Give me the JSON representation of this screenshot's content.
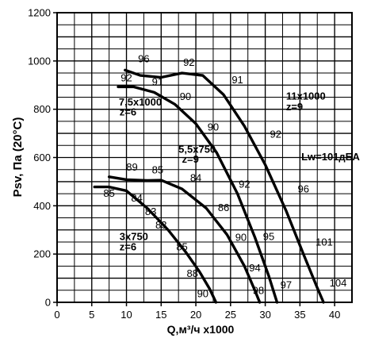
{
  "chart_data": {
    "type": "line",
    "title": "",
    "xlabel": "Q,м³/ч x1000",
    "ylabel": "Psv, Па (20°C)",
    "xlim": [
      0,
      42.5
    ],
    "ylim": [
      0,
      1200
    ],
    "grid": true,
    "x_ticks": [
      "0",
      "5",
      "10",
      "15",
      "20",
      "25",
      "30",
      "35",
      "40"
    ],
    "y_ticks": [
      "0",
      "200",
      "400",
      "600",
      "800",
      "1000",
      "1200"
    ],
    "series": [
      {
        "name": "3x750 z=6",
        "x": [
          5.4,
          7.5,
          10.0,
          13.0,
          16.0,
          18.5,
          20.5,
          22.0,
          22.9
        ],
        "y": [
          478,
          478,
          462,
          390,
          300,
          210,
          128,
          55,
          0
        ],
        "labels": [
          {
            "text": "85",
            "x": 7.5,
            "y": 438
          },
          {
            "text": "84",
            "x": 11.5,
            "y": 418
          },
          {
            "text": "83",
            "x": 13.5,
            "y": 362
          },
          {
            "text": "83",
            "x": 15.0,
            "y": 305
          },
          {
            "text": "85",
            "x": 18.0,
            "y": 215
          },
          {
            "text": "88",
            "x": 19.5,
            "y": 105
          },
          {
            "text": "90",
            "x": 21.0,
            "y": 22
          }
        ]
      },
      {
        "name": "5,5x750 z=9",
        "x": [
          7.5,
          10.0,
          13.0,
          15.0,
          18.0,
          21.5,
          24.5,
          27.0,
          28.5,
          29.2
        ],
        "y": [
          520,
          508,
          505,
          506,
          470,
          390,
          280,
          150,
          50,
          0
        ],
        "labels": [
          {
            "text": "89",
            "x": 10.8,
            "y": 545
          },
          {
            "text": "85",
            "x": 14.5,
            "y": 535
          },
          {
            "text": "84",
            "x": 20.0,
            "y": 502
          },
          {
            "text": "86",
            "x": 24.0,
            "y": 378
          },
          {
            "text": "90",
            "x": 26.5,
            "y": 255
          },
          {
            "text": "94",
            "x": 28.5,
            "y": 128
          },
          {
            "text": "98",
            "x": 29.0,
            "y": 35
          }
        ]
      },
      {
        "name": "7,5x1000 z=6",
        "x": [
          8.8,
          11.0,
          14.0,
          17.0,
          20.0,
          23.0,
          26.0,
          28.5,
          30.5,
          31.7
        ],
        "y": [
          893,
          893,
          870,
          820,
          740,
          620,
          450,
          270,
          110,
          0
        ],
        "labels": [
          {
            "text": "92",
            "x": 10.0,
            "y": 915
          },
          {
            "text": "91",
            "x": 14.5,
            "y": 900
          },
          {
            "text": "90",
            "x": 18.5,
            "y": 838
          },
          {
            "text": "90",
            "x": 22.5,
            "y": 712
          },
          {
            "text": "92",
            "x": 27.0,
            "y": 475
          },
          {
            "text": "95",
            "x": 30.5,
            "y": 258
          },
          {
            "text": "97",
            "x": 33.0,
            "y": 58
          }
        ]
      },
      {
        "name": "11x1000 z=9",
        "x": [
          9.8,
          12.0,
          15.0,
          18.0,
          21.0,
          24.0,
          27.0,
          30.0,
          33.0,
          35.5,
          37.5,
          38.4
        ],
        "y": [
          962,
          940,
          932,
          950,
          940,
          860,
          730,
          570,
          380,
          200,
          60,
          0
        ],
        "labels": [
          {
            "text": "96",
            "x": 12.5,
            "y": 995
          },
          {
            "text": "92",
            "x": 19.0,
            "y": 980
          },
          {
            "text": "91",
            "x": 26.0,
            "y": 907
          },
          {
            "text": "92",
            "x": 31.5,
            "y": 683
          },
          {
            "text": "96",
            "x": 35.5,
            "y": 455
          },
          {
            "text": "101",
            "x": 38.5,
            "y": 235
          },
          {
            "text": "104",
            "x": 40.5,
            "y": 65
          }
        ]
      }
    ],
    "annotations": [
      {
        "text": "7,5x1000",
        "x": 8.9,
        "y": 815
      },
      {
        "text": "z=6",
        "x": 9.0,
        "y": 775
      },
      {
        "text": "11x1000",
        "x": 33.0,
        "y": 840
      },
      {
        "text": "z=9",
        "x": 33.0,
        "y": 795
      },
      {
        "text": "5,5x750",
        "x": 17.5,
        "y": 620
      },
      {
        "text": "z=9",
        "x": 18.0,
        "y": 578
      },
      {
        "text": "Lw=101дБА",
        "x": 35.2,
        "y": 588
      },
      {
        "text": "3x750",
        "x": 9.0,
        "y": 258
      },
      {
        "text": "z=6",
        "x": 9.0,
        "y": 215
      }
    ]
  }
}
